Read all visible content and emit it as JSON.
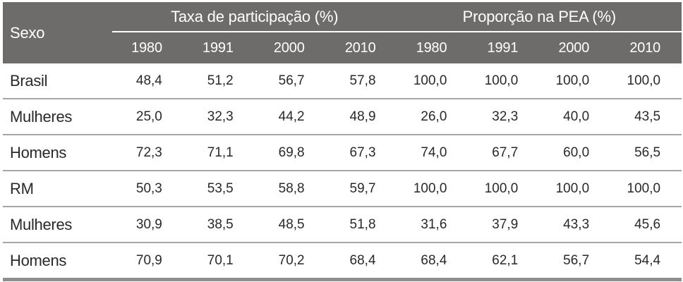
{
  "table": {
    "corner_label": "Sexo",
    "groups": [
      {
        "label": "Taxa de participação (%)",
        "years": [
          "1980",
          "1991",
          "2000",
          "2010"
        ]
      },
      {
        "label": "Proporção na PEA (%)",
        "years": [
          "1980",
          "1991",
          "2000",
          "2010"
        ]
      }
    ],
    "rows": [
      {
        "label": "Brasil",
        "values": [
          "48,4",
          "51,2",
          "56,7",
          "57,8",
          "100,0",
          "100,0",
          "100,0",
          "100,0"
        ]
      },
      {
        "label": "Mulheres",
        "values": [
          "25,0",
          "32,3",
          "44,2",
          "48,9",
          "26,0",
          "32,3",
          "40,0",
          "43,5"
        ]
      },
      {
        "label": "Homens",
        "values": [
          "72,3",
          "71,1",
          "69,8",
          "67,3",
          "74,0",
          "67,7",
          "60,0",
          "56,5"
        ]
      },
      {
        "label": "RM",
        "values": [
          "50,3",
          "53,5",
          "58,8",
          "59,7",
          "100,0",
          "100,0",
          "100,0",
          "100,0"
        ]
      },
      {
        "label": "Mulheres",
        "values": [
          "30,9",
          "38,5",
          "48,5",
          "51,8",
          "31,6",
          "37,9",
          "43,3",
          "45,6"
        ]
      },
      {
        "label": "Homens",
        "values": [
          "70,9",
          "70,1",
          "70,2",
          "68,4",
          "68,4",
          "62,1",
          "56,7",
          "54,4"
        ]
      }
    ]
  },
  "colors": {
    "header_background": "#6e6c6b",
    "header_text": "#ffffff",
    "body_text": "#2b2927",
    "row_separator": "#a6a6a6",
    "bottom_rule": "#8f8f8f"
  }
}
